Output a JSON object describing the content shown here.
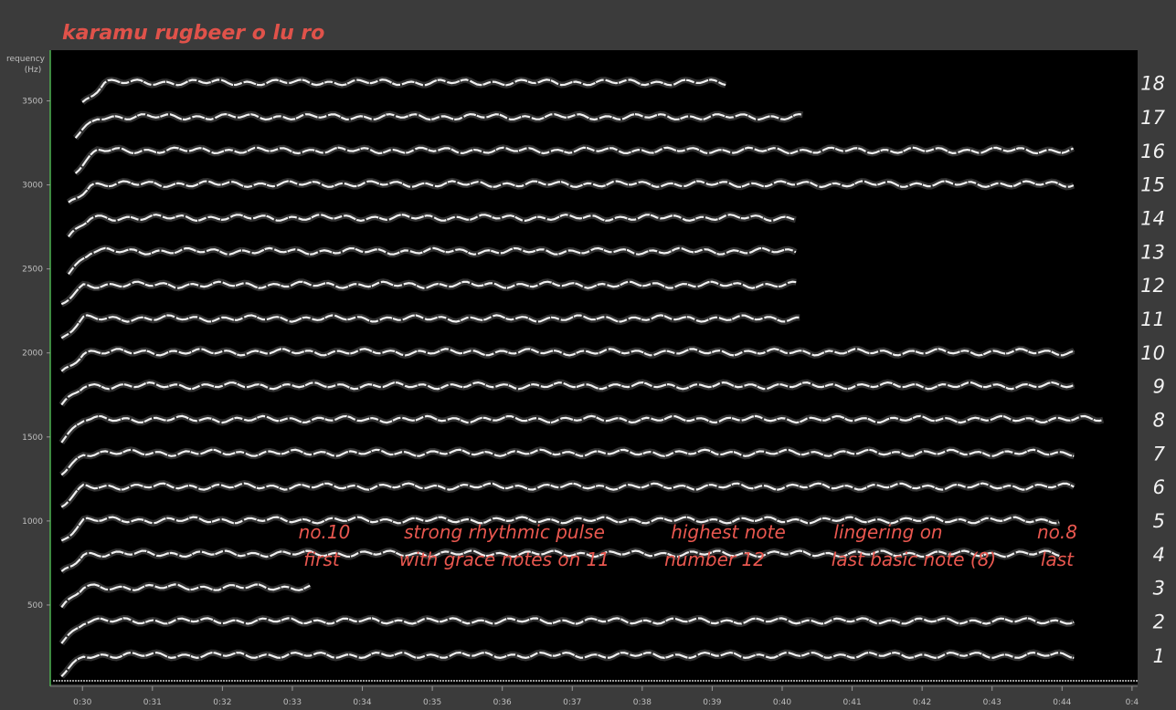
{
  "chart_data": {
    "type": "spectrogram",
    "title": "karamu rugbeer o lu  ro",
    "ylabel": [
      "requency",
      "(Hz)"
    ],
    "ylim": [
      0,
      3780
    ],
    "yticks": [
      500,
      1000,
      1500,
      2000,
      2500,
      3000,
      3500
    ],
    "xlim": [
      29.54,
      45.08
    ],
    "xticks": [
      {
        "value": 30,
        "label": "0:30"
      },
      {
        "value": 31,
        "label": "0:31"
      },
      {
        "value": 32,
        "label": "0:32"
      },
      {
        "value": 33,
        "label": "0:33"
      },
      {
        "value": 34,
        "label": "0:34"
      },
      {
        "value": 35,
        "label": "0:35"
      },
      {
        "value": 36,
        "label": "0:36"
      },
      {
        "value": 37,
        "label": "0:37"
      },
      {
        "value": 38,
        "label": "0:38"
      },
      {
        "value": 39,
        "label": "0:39"
      },
      {
        "value": 40,
        "label": "0:40"
      },
      {
        "value": 41,
        "label": "0:41"
      },
      {
        "value": 42,
        "label": "0:42"
      },
      {
        "value": 43,
        "label": "0:43"
      },
      {
        "value": 44,
        "label": "0:44"
      },
      {
        "value": 45,
        "label": "0:4"
      }
    ],
    "color": "#f0f0f0",
    "harmonics": [
      {
        "label": "1",
        "freq": 201,
        "span": [
          29.7,
          44.2
        ]
      },
      {
        "label": "2",
        "freq": 405,
        "span": [
          29.7,
          44.2
        ]
      },
      {
        "label": "3",
        "freq": 605,
        "span": [
          29.7,
          33.3
        ]
      },
      {
        "label": "4",
        "freq": 805,
        "span": [
          29.7,
          44.0
        ]
      },
      {
        "label": "5",
        "freq": 1005,
        "span": [
          29.7,
          44.0
        ]
      },
      {
        "label": "6",
        "freq": 1205,
        "span": [
          29.7,
          44.2
        ]
      },
      {
        "label": "7",
        "freq": 1405,
        "span": [
          29.7,
          44.2
        ]
      },
      {
        "label": "8",
        "freq": 1605,
        "span": [
          29.7,
          44.6
        ]
      },
      {
        "label": "9",
        "freq": 1805,
        "span": [
          29.7,
          44.2
        ]
      },
      {
        "label": "10",
        "freq": 2005,
        "span": [
          29.7,
          44.2
        ]
      },
      {
        "label": "11",
        "freq": 2205,
        "span": [
          29.7,
          40.3
        ]
      },
      {
        "label": "12",
        "freq": 2405,
        "span": [
          29.7,
          40.2
        ]
      },
      {
        "label": "13",
        "freq": 2605,
        "span": [
          29.8,
          40.2
        ]
      },
      {
        "label": "14",
        "freq": 2805,
        "span": [
          29.8,
          40.2
        ]
      },
      {
        "label": "15",
        "freq": 3005,
        "span": [
          29.8,
          44.2
        ]
      },
      {
        "label": "16",
        "freq": 3205,
        "span": [
          29.9,
          44.2
        ]
      },
      {
        "label": "17",
        "freq": 3405,
        "span": [
          29.9,
          40.3
        ]
      },
      {
        "label": "18",
        "freq": 3610,
        "span": [
          30.0,
          39.2
        ]
      }
    ],
    "annotations": [
      {
        "lines": [
          "no.10",
          "first"
        ]
      },
      {
        "lines": [
          "strong rhythmic pulse",
          "with grace notes on 11"
        ]
      },
      {
        "lines": [
          "highest note",
          "number 12"
        ]
      },
      {
        "lines": [
          "lingering on",
          "last basic note (8)"
        ]
      },
      {
        "lines": [
          "no.8",
          "last"
        ]
      }
    ]
  }
}
